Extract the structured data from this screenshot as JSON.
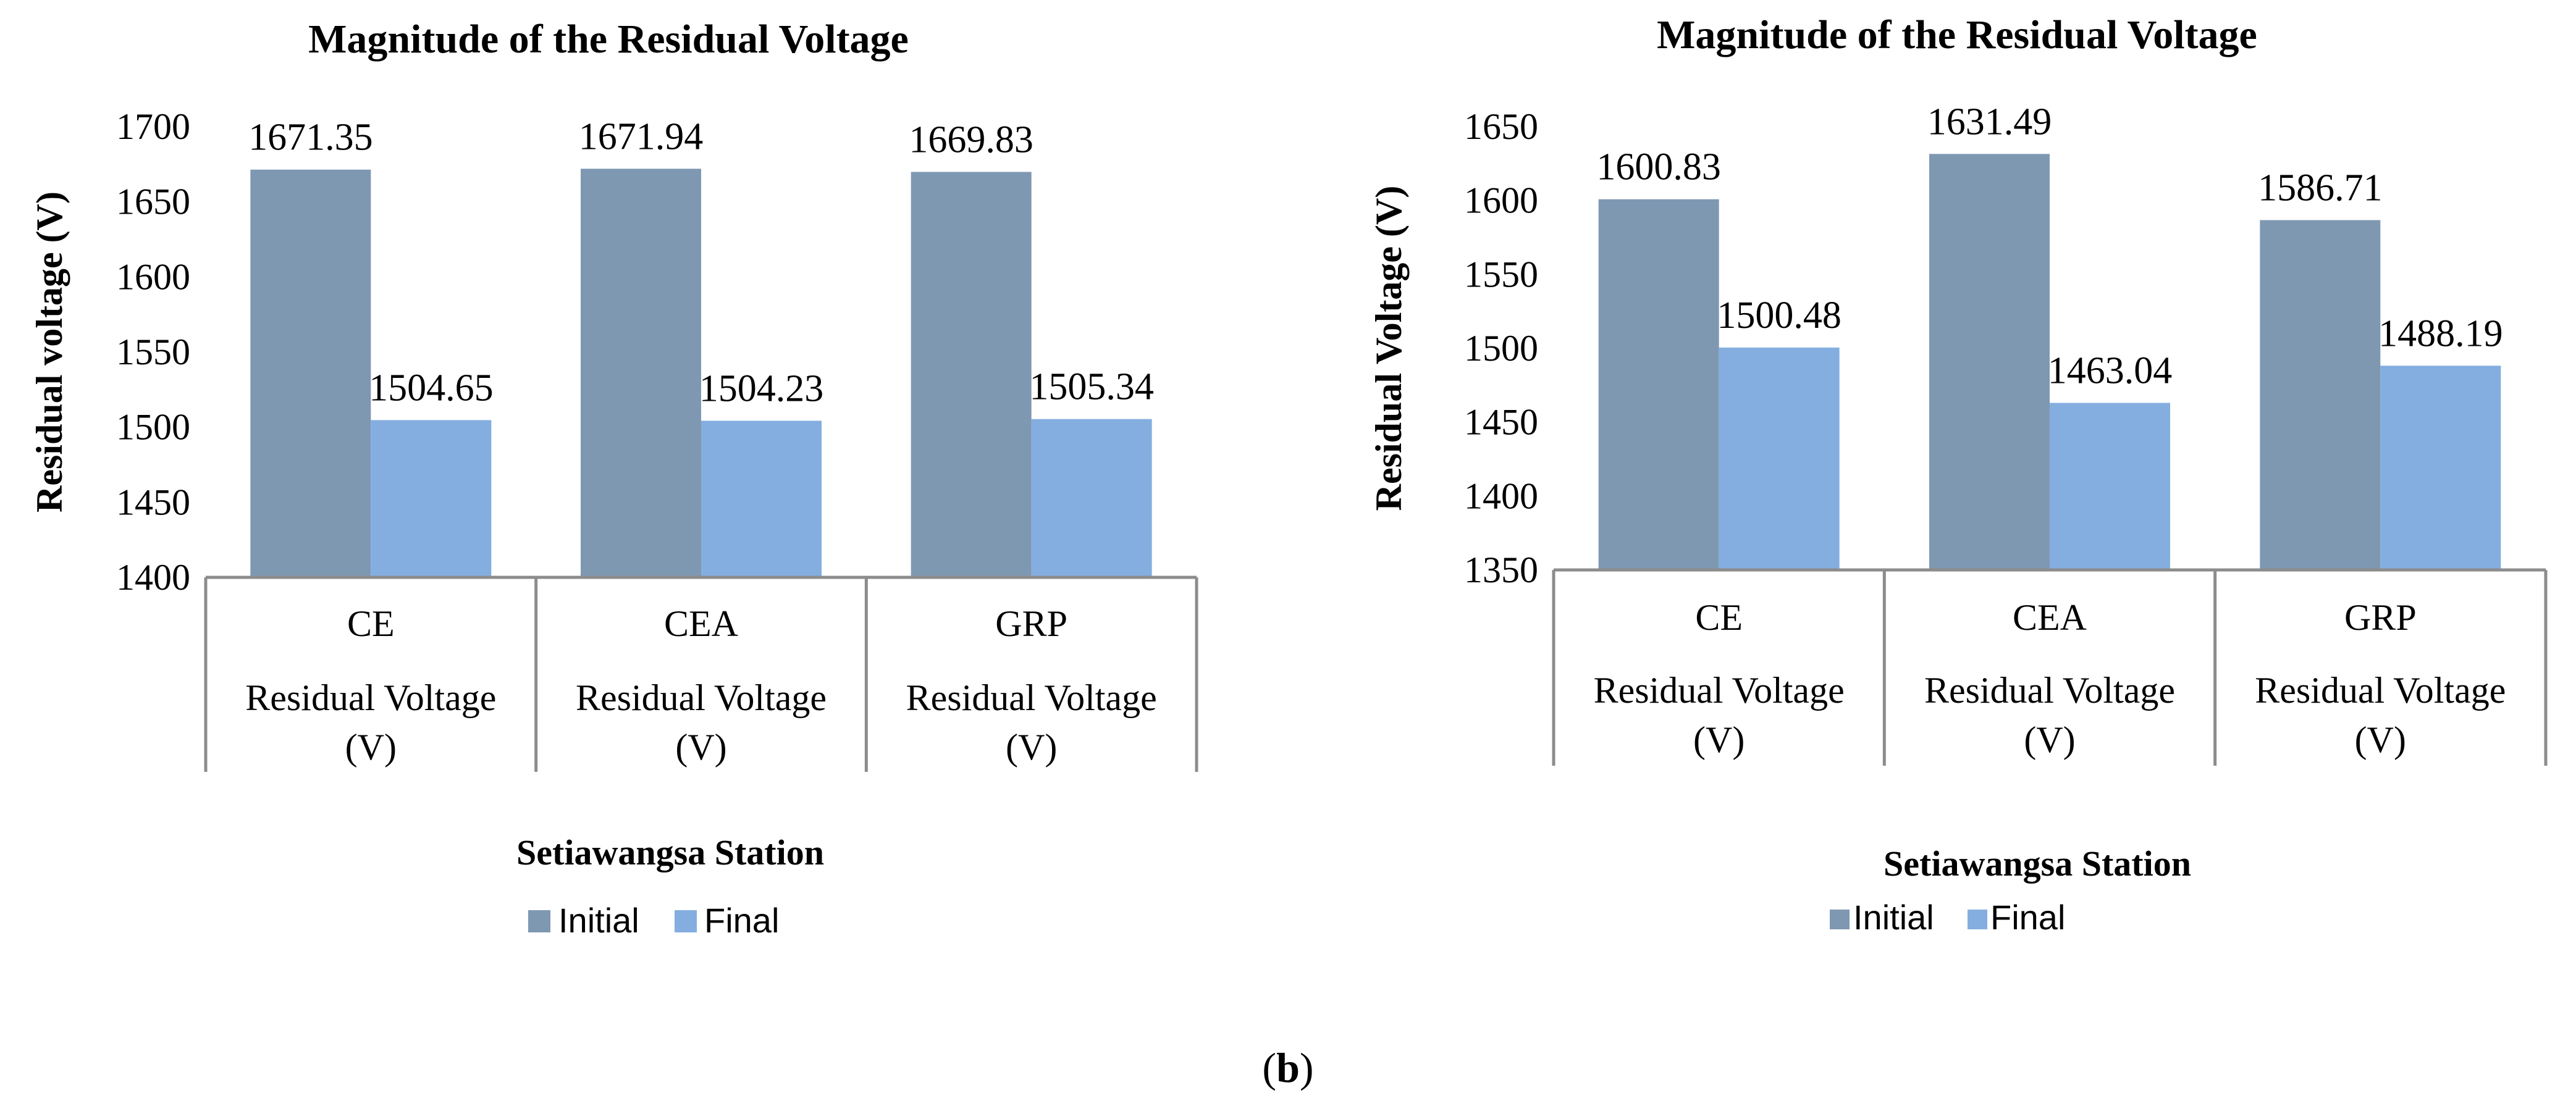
{
  "caption": {
    "open": "(",
    "letter": "b",
    "close": ")"
  },
  "colors": {
    "initial": "#7f98b2",
    "final": "#84aee0",
    "axis": "#8c8c8c"
  },
  "chart_data": [
    {
      "type": "bar",
      "title": "Magnitude of the Residual Voltage",
      "ylabel": "Residual voltage (V)",
      "xlabel": "Setiawangsa Station",
      "ylim": [
        1400,
        1700
      ],
      "yticks": [
        1400,
        1450,
        1500,
        1550,
        1600,
        1650,
        1700
      ],
      "categories": [
        "CE",
        "CEA",
        "GRP"
      ],
      "category_sublabel": [
        "Residual Voltage",
        "(V)"
      ],
      "series": [
        {
          "name": "Initial",
          "values": [
            1671.35,
            1671.94,
            1669.83
          ],
          "labels": [
            "1671.35",
            "1671.94",
            "1669.83"
          ]
        },
        {
          "name": "Final",
          "values": [
            1504.65,
            1504.23,
            1505.34
          ],
          "labels": [
            "1504.65",
            "1504.23",
            "1505.34"
          ]
        }
      ],
      "legend": [
        "Initial",
        "Final"
      ],
      "legend_position": "bottom"
    },
    {
      "type": "bar",
      "title": "Magnitude of the Residual Voltage",
      "ylabel": "Residual Voltage (V)",
      "xlabel": "Setiawangsa Station",
      "ylim": [
        1350,
        1650
      ],
      "yticks": [
        1350,
        1400,
        1450,
        1500,
        1550,
        1600,
        1650
      ],
      "categories": [
        "CE",
        "CEA",
        "GRP"
      ],
      "category_sublabel": [
        "Residual Voltage",
        "(V)"
      ],
      "series": [
        {
          "name": "Initial",
          "values": [
            1600.83,
            1631.49,
            1586.71
          ],
          "labels": [
            "1600.83",
            "1631.49",
            "1586.71"
          ]
        },
        {
          "name": "Final",
          "values": [
            1500.48,
            1463.04,
            1488.19
          ],
          "labels": [
            "1500.48",
            "1463.04",
            "1488.19"
          ]
        }
      ],
      "legend": [
        "Initial",
        "Final"
      ],
      "legend_position": "bottom"
    }
  ]
}
